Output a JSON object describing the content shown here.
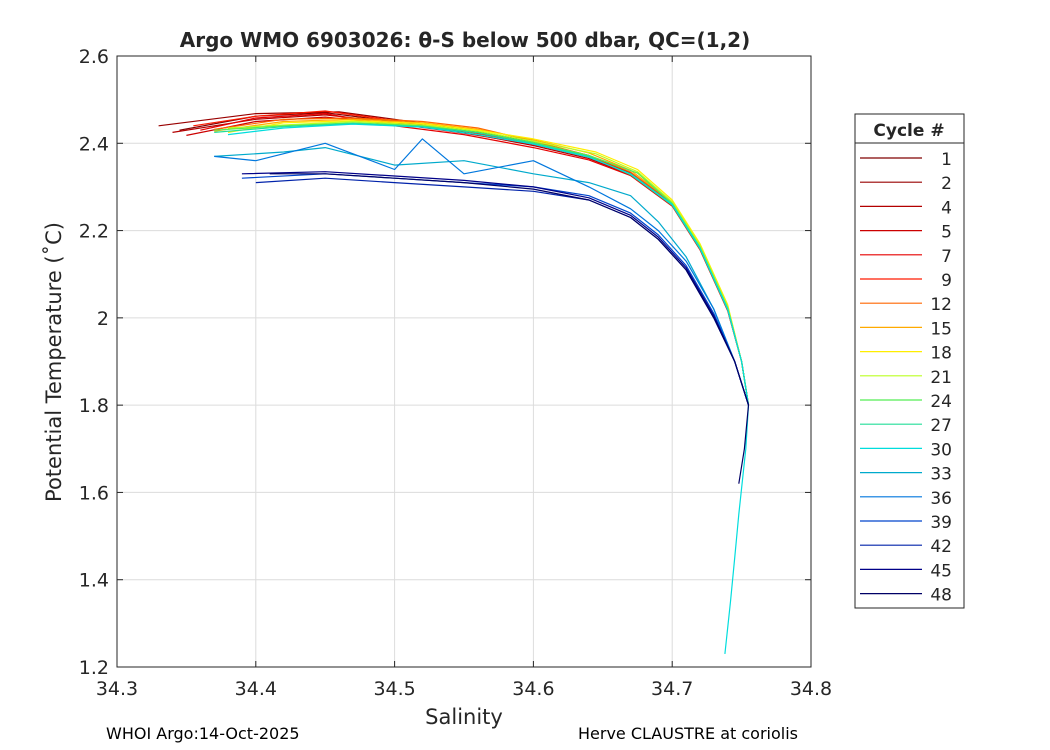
{
  "chart_data": {
    "type": "line",
    "title": "Argo WMO 6903026: θ-S below 500 dbar,  QC=(1,2)",
    "xlabel": "Salinity",
    "ylabel": "Potential Temperature (˚C)",
    "xlim": [
      34.3,
      34.8
    ],
    "ylim": [
      1.2,
      2.6
    ],
    "xticks": [
      "34.3",
      "34.4",
      "34.5",
      "34.6",
      "34.7",
      "34.8"
    ],
    "yticks": [
      "1.2",
      "1.4",
      "1.6",
      "1.8",
      "2",
      "2.2",
      "2.4",
      "2.6"
    ],
    "grid": true,
    "legend_title": "Cycle #",
    "legend_position": "right",
    "series": [
      {
        "name": "1",
        "color": "#800000",
        "x": [
          34.345,
          34.4,
          34.45,
          34.5,
          34.55,
          34.6,
          34.64,
          34.67,
          34.7,
          34.72,
          34.74,
          34.75,
          34.755
        ],
        "y": [
          2.43,
          2.462,
          2.47,
          2.45,
          2.43,
          2.4,
          2.37,
          2.33,
          2.26,
          2.16,
          2.02,
          1.9,
          1.8
        ]
      },
      {
        "name": "2",
        "color": "#990000",
        "x": [
          34.33,
          34.4,
          34.46,
          34.5,
          34.55,
          34.6,
          34.64,
          34.67,
          34.7,
          34.72,
          34.74,
          34.75,
          34.755
        ],
        "y": [
          2.44,
          2.468,
          2.472,
          2.455,
          2.432,
          2.402,
          2.372,
          2.332,
          2.262,
          2.162,
          2.022,
          1.9,
          1.8
        ]
      },
      {
        "name": "4",
        "color": "#b30000",
        "x": [
          34.34,
          34.4,
          34.45,
          34.5,
          34.55,
          34.6,
          34.64,
          34.67,
          34.7,
          34.72,
          34.74,
          34.75,
          34.755
        ],
        "y": [
          2.425,
          2.455,
          2.465,
          2.448,
          2.425,
          2.395,
          2.365,
          2.328,
          2.258,
          2.158,
          2.018,
          1.9,
          1.8
        ]
      },
      {
        "name": "5",
        "color": "#cc0000",
        "x": [
          34.35,
          34.4,
          34.45,
          34.5,
          34.55,
          34.6,
          34.64,
          34.67,
          34.7,
          34.72,
          34.74,
          34.75,
          34.755
        ],
        "y": [
          2.418,
          2.45,
          2.46,
          2.445,
          2.423,
          2.398,
          2.368,
          2.33,
          2.26,
          2.16,
          2.02,
          1.9,
          1.8
        ]
      },
      {
        "name": "7",
        "color": "#e60000",
        "x": [
          34.36,
          34.4,
          34.45,
          34.5,
          34.55,
          34.6,
          34.64,
          34.67,
          34.7,
          34.72,
          34.74,
          34.75,
          34.755
        ],
        "y": [
          2.43,
          2.458,
          2.468,
          2.44,
          2.42,
          2.39,
          2.362,
          2.326,
          2.256,
          2.156,
          2.016,
          1.9,
          1.8
        ]
      },
      {
        "name": "9",
        "color": "#ff1a00",
        "x": [
          34.355,
          34.4,
          34.45,
          34.5,
          34.55,
          34.6,
          34.64,
          34.67,
          34.7,
          34.72,
          34.74,
          34.75,
          34.755
        ],
        "y": [
          2.44,
          2.462,
          2.474,
          2.452,
          2.428,
          2.4,
          2.37,
          2.33,
          2.26,
          2.16,
          2.02,
          1.9,
          1.8
        ]
      },
      {
        "name": "12",
        "color": "#ff6600",
        "x": [
          34.37,
          34.42,
          34.47,
          34.52,
          34.56,
          34.6,
          34.64,
          34.67,
          34.7,
          34.72,
          34.74,
          34.75,
          34.755
        ],
        "y": [
          2.432,
          2.455,
          2.458,
          2.45,
          2.435,
          2.405,
          2.372,
          2.334,
          2.264,
          2.164,
          2.024,
          1.9,
          1.8
        ]
      },
      {
        "name": "15",
        "color": "#ffaa00",
        "x": [
          34.37,
          34.42,
          34.47,
          34.52,
          34.56,
          34.6,
          34.64,
          34.67,
          34.7,
          34.72,
          34.74,
          34.75,
          34.755
        ],
        "y": [
          2.428,
          2.45,
          2.455,
          2.447,
          2.432,
          2.408,
          2.378,
          2.338,
          2.266,
          2.166,
          2.026,
          1.9,
          1.8
        ]
      },
      {
        "name": "18",
        "color": "#ffee00",
        "x": [
          34.38,
          34.42,
          34.47,
          34.52,
          34.56,
          34.6,
          34.645,
          34.675,
          34.7,
          34.72,
          34.74,
          34.75,
          34.755
        ],
        "y": [
          2.425,
          2.447,
          2.452,
          2.445,
          2.43,
          2.41,
          2.38,
          2.34,
          2.27,
          2.17,
          2.03,
          1.9,
          1.8
        ]
      },
      {
        "name": "21",
        "color": "#bbff22",
        "x": [
          34.38,
          34.42,
          34.47,
          34.52,
          34.56,
          34.6,
          34.645,
          34.675,
          34.7,
          34.72,
          34.74,
          34.75,
          34.755
        ],
        "y": [
          2.435,
          2.442,
          2.45,
          2.442,
          2.428,
          2.405,
          2.376,
          2.335,
          2.266,
          2.166,
          2.026,
          1.9,
          1.8
        ]
      },
      {
        "name": "24",
        "color": "#55ee55",
        "x": [
          34.37,
          34.42,
          34.47,
          34.52,
          34.56,
          34.6,
          34.64,
          34.675,
          34.7,
          34.72,
          34.74,
          34.75,
          34.755
        ],
        "y": [
          2.43,
          2.44,
          2.447,
          2.44,
          2.425,
          2.402,
          2.372,
          2.332,
          2.262,
          2.162,
          2.022,
          1.9,
          1.8
        ]
      },
      {
        "name": "27",
        "color": "#22dd99",
        "x": [
          34.37,
          34.42,
          34.47,
          34.52,
          34.56,
          34.6,
          34.64,
          34.67,
          34.7,
          34.72,
          34.74,
          34.75,
          34.755
        ],
        "y": [
          2.425,
          2.438,
          2.445,
          2.438,
          2.424,
          2.4,
          2.37,
          2.328,
          2.258,
          2.158,
          2.018,
          1.9,
          1.8
        ]
      },
      {
        "name": "30",
        "color": "#00dddd",
        "x": [
          34.38,
          34.42,
          34.47,
          34.52,
          34.56,
          34.6,
          34.64,
          34.67,
          34.7,
          34.72,
          34.74,
          34.75,
          34.755,
          34.753,
          34.748,
          34.745,
          34.742,
          34.738
        ],
        "y": [
          2.42,
          2.435,
          2.444,
          2.437,
          2.42,
          2.398,
          2.368,
          2.33,
          2.26,
          2.16,
          2.02,
          1.9,
          1.8,
          1.7,
          1.55,
          1.45,
          1.35,
          1.23
        ]
      },
      {
        "name": "33",
        "color": "#00aacc",
        "x": [
          34.37,
          34.42,
          34.45,
          34.5,
          34.55,
          34.6,
          34.64,
          34.67,
          34.69,
          34.71,
          34.73,
          34.745,
          34.755
        ],
        "y": [
          2.37,
          2.38,
          2.39,
          2.35,
          2.36,
          2.33,
          2.31,
          2.28,
          2.22,
          2.14,
          2.02,
          1.9,
          1.8
        ]
      },
      {
        "name": "36",
        "color": "#0077dd",
        "x": [
          34.37,
          34.4,
          34.45,
          34.5,
          34.52,
          34.55,
          34.6,
          34.64,
          34.67,
          34.69,
          34.71,
          34.73,
          34.745,
          34.755
        ],
        "y": [
          2.37,
          2.36,
          2.4,
          2.34,
          2.41,
          2.33,
          2.36,
          2.3,
          2.25,
          2.2,
          2.13,
          2.02,
          1.9,
          1.8
        ]
      },
      {
        "name": "39",
        "color": "#0044cc",
        "x": [
          34.39,
          34.45,
          34.5,
          34.55,
          34.6,
          34.64,
          34.67,
          34.69,
          34.71,
          34.73,
          34.745,
          34.755
        ],
        "y": [
          2.32,
          2.33,
          2.32,
          2.31,
          2.3,
          2.28,
          2.24,
          2.19,
          2.12,
          2.01,
          1.9,
          1.8
        ]
      },
      {
        "name": "42",
        "color": "#0022aa",
        "x": [
          34.4,
          34.45,
          34.5,
          34.55,
          34.6,
          34.64,
          34.67,
          34.69,
          34.71,
          34.73,
          34.745,
          34.755
        ],
        "y": [
          2.31,
          2.32,
          2.31,
          2.3,
          2.29,
          2.27,
          2.23,
          2.18,
          2.11,
          2.0,
          1.9,
          1.8
        ]
      },
      {
        "name": "45",
        "color": "#000088",
        "x": [
          34.39,
          34.45,
          34.5,
          34.55,
          34.6,
          34.64,
          34.67,
          34.69,
          34.71,
          34.73,
          34.745,
          34.755
        ],
        "y": [
          2.33,
          2.335,
          2.325,
          2.315,
          2.3,
          2.275,
          2.235,
          2.185,
          2.115,
          2.005,
          1.9,
          1.8
        ]
      },
      {
        "name": "48",
        "color": "#000066",
        "x": [
          34.41,
          34.45,
          34.5,
          34.55,
          34.6,
          34.64,
          34.67,
          34.69,
          34.71,
          34.73,
          34.745,
          34.755,
          34.752,
          34.748
        ],
        "y": [
          2.33,
          2.33,
          2.32,
          2.31,
          2.295,
          2.27,
          2.23,
          2.18,
          2.11,
          2.0,
          1.9,
          1.8,
          1.7,
          1.62
        ]
      }
    ]
  },
  "footer": {
    "left": "WHOI Argo:14-Oct-2025",
    "right": "Herve CLAUSTRE at coriolis"
  }
}
